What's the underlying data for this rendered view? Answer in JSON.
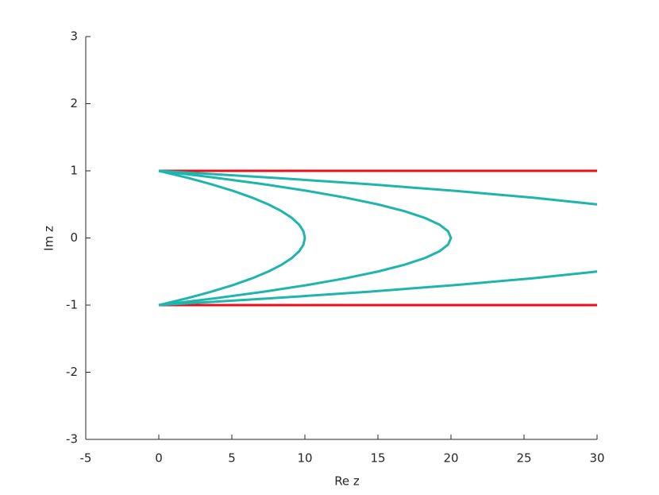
{
  "chart_data": {
    "type": "line",
    "xlabel": "Re z",
    "ylabel": "Im z",
    "xlim": [
      -5,
      30
    ],
    "ylim": [
      -3,
      3
    ],
    "xticks": [
      -5,
      0,
      5,
      10,
      15,
      20,
      25,
      30
    ],
    "yticks": [
      -3,
      -2,
      -1,
      0,
      1,
      2,
      3
    ],
    "grid": false,
    "series": [
      {
        "color": "#e8101a",
        "x": [
          0,
          30
        ],
        "y": [
          1,
          1
        ]
      },
      {
        "color": "#e8101a",
        "x": [
          0,
          30
        ],
        "y": [
          -1,
          -1
        ]
      },
      {
        "color": "#1fb5ad",
        "x": [
          0,
          1.9,
          3.6,
          5.1,
          6.4,
          7.5,
          8.4,
          9.1,
          9.6,
          9.9,
          10,
          9.9,
          9.6,
          9.1,
          8.4,
          7.5,
          6.4,
          5.1,
          3.6,
          1.9,
          0
        ],
        "y": [
          1,
          0.9,
          0.8,
          0.7,
          0.6,
          0.5,
          0.4,
          0.3,
          0.2,
          0.1,
          0,
          -0.1,
          -0.2,
          -0.3,
          -0.4,
          -0.5,
          -0.6,
          -0.7,
          -0.8,
          -0.9,
          -1
        ]
      },
      {
        "color": "#1fb5ad",
        "x": [
          0,
          3.8,
          7.2,
          10.2,
          12.8,
          15,
          16.8,
          18.2,
          19.2,
          19.8,
          20,
          19.8,
          19.2,
          18.2,
          16.8,
          15,
          12.8,
          10.2,
          7.2,
          3.8,
          0
        ],
        "y": [
          1,
          0.9,
          0.8,
          0.7,
          0.6,
          0.5,
          0.4,
          0.3,
          0.2,
          0.1,
          0,
          -0.1,
          -0.2,
          -0.3,
          -0.4,
          -0.5,
          -0.6,
          -0.7,
          -0.8,
          -0.9,
          -1
        ]
      },
      {
        "color": "#1fb5ad",
        "x": [
          0,
          7.6,
          14.4,
          20.4,
          25.6,
          30,
          null,
          null,
          null,
          null,
          null,
          null,
          null,
          null,
          null,
          30,
          25.6,
          20.4,
          14.4,
          7.6,
          0
        ],
        "y": [
          1,
          0.9,
          0.8,
          0.7,
          0.6,
          0.5,
          null,
          null,
          null,
          null,
          null,
          null,
          null,
          null,
          null,
          -0.5,
          -0.6,
          -0.7,
          -0.8,
          -0.9,
          -1
        ]
      }
    ]
  }
}
